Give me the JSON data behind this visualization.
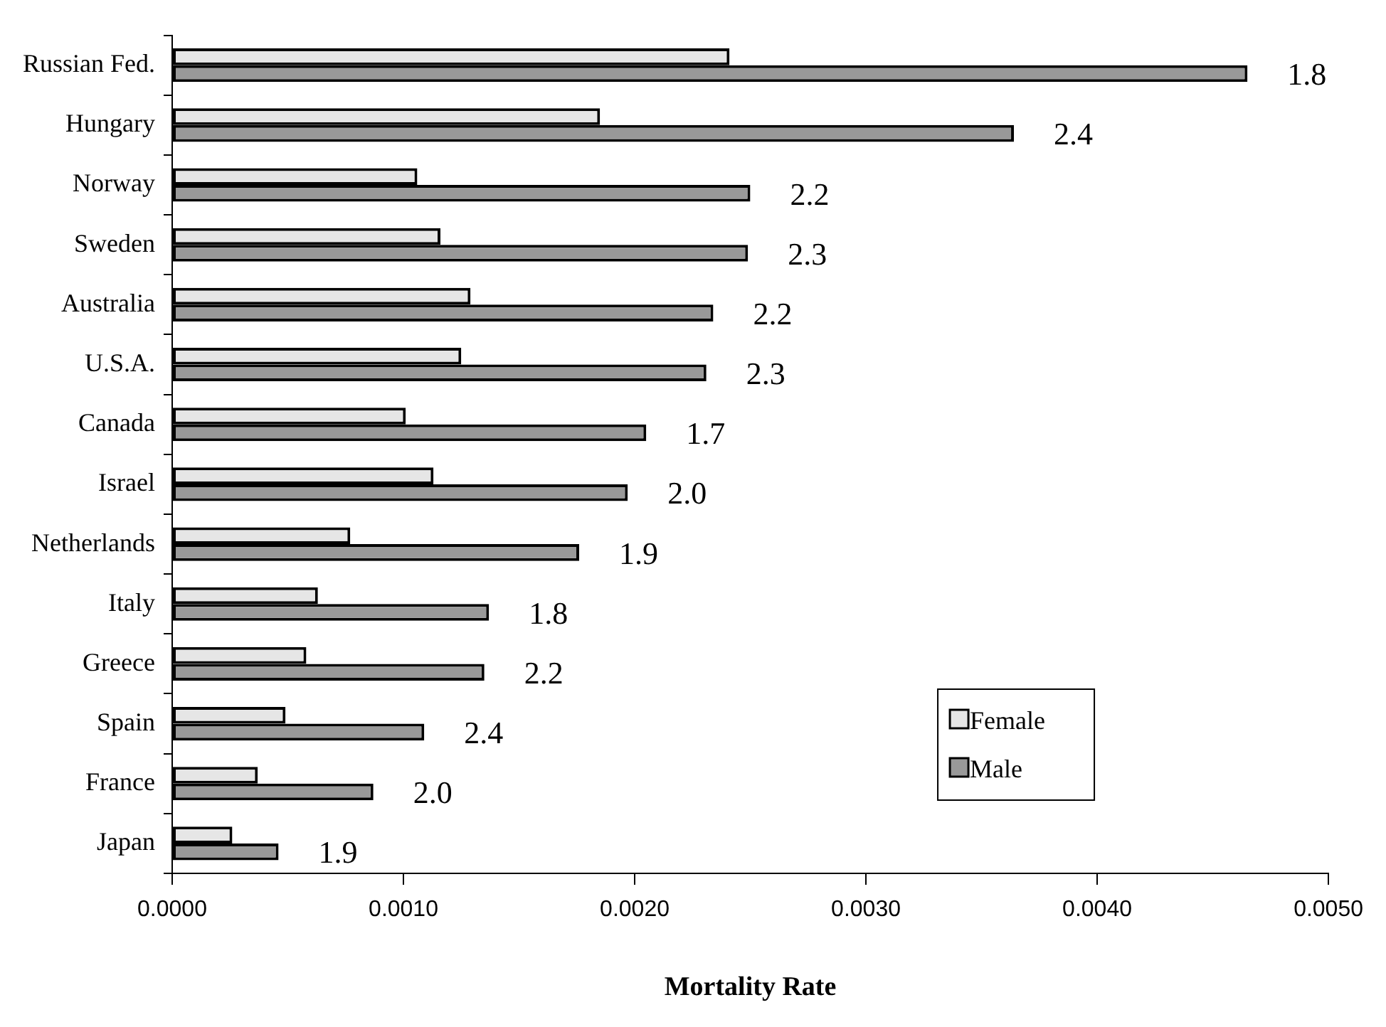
{
  "chart_data": {
    "type": "bar",
    "orientation": "horizontal",
    "xlabel": "Mortality Rate",
    "categories": [
      "Russian Fed.",
      "Hungary",
      "Norway",
      "Sweden",
      "Australia",
      "U.S.A.",
      "Canada",
      "Israel",
      "Netherlands",
      "Italy",
      "Greece",
      "Spain",
      "France",
      "Japan"
    ],
    "series": [
      {
        "name": "Female",
        "color": "#e6e6e6",
        "values": [
          0.00241,
          0.00185,
          0.00106,
          0.00116,
          0.00129,
          0.00125,
          0.00101,
          0.00113,
          0.00077,
          0.00063,
          0.00058,
          0.00049,
          0.00037,
          0.00026
        ]
      },
      {
        "name": "Male",
        "color": "#999999",
        "values": [
          0.00465,
          0.00364,
          0.0025,
          0.00249,
          0.00234,
          0.00231,
          0.00205,
          0.00197,
          0.00176,
          0.00137,
          0.00135,
          0.00109,
          0.00087,
          0.00046
        ]
      }
    ],
    "annotations": [
      {
        "text": "1.8",
        "x": 0.00465,
        "y": "Russian Fed."
      },
      {
        "text": "2.4",
        "x": 0.00364,
        "y": "Hungary"
      },
      {
        "text": "2.2",
        "x": 0.0025,
        "y": "Norway"
      },
      {
        "text": "2.3",
        "x": 0.00249,
        "y": "Sweden"
      },
      {
        "text": "2.2",
        "x": 0.00234,
        "y": "Australia"
      },
      {
        "text": "2.3",
        "x": 0.00231,
        "y": "U.S.A."
      },
      {
        "text": "1.7",
        "x": 0.00205,
        "y": "Canada"
      },
      {
        "text": "2.0",
        "x": 0.00197,
        "y": "Israel"
      },
      {
        "text": "1.9",
        "x": 0.00176,
        "y": "Netherlands"
      },
      {
        "text": "1.8",
        "x": 0.00137,
        "y": "Italy"
      },
      {
        "text": "2.2",
        "x": 0.00135,
        "y": "Greece"
      },
      {
        "text": "2.4",
        "x": 0.00109,
        "y": "Spain"
      },
      {
        "text": "2.0",
        "x": 0.00087,
        "y": "France"
      },
      {
        "text": "1.9",
        "x": 0.00046,
        "y": "Japan"
      }
    ],
    "xlim": [
      0,
      0.005
    ],
    "xticks": [
      {
        "value": 0,
        "label": "0.0000"
      },
      {
        "value": 0.001,
        "label": "0.0010"
      },
      {
        "value": 0.002,
        "label": "0.0020"
      },
      {
        "value": 0.003,
        "label": "0.0030"
      },
      {
        "value": 0.004,
        "label": "0.0040"
      },
      {
        "value": 0.005,
        "label": "0.0050"
      }
    ],
    "grid": false,
    "legend": "bottom right"
  }
}
